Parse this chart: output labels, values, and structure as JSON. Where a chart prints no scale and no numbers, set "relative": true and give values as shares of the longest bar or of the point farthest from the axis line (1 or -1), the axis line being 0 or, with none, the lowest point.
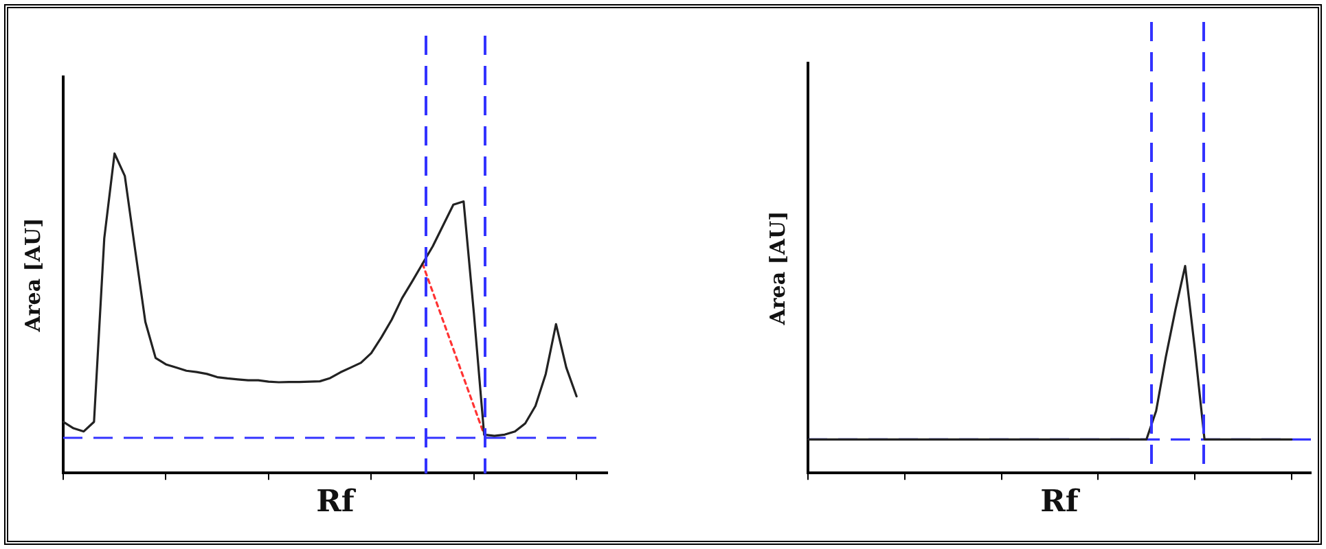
{
  "chart_data": [
    {
      "type": "line",
      "xlabel": "Rf",
      "ylabel": "Area [AU]",
      "relative": true,
      "tick_labels": false,
      "legend": false,
      "grid": false,
      "marker": "none",
      "categories": [
        null,
        null,
        null,
        null,
        null,
        null,
        null,
        null,
        null,
        null,
        null,
        null,
        null,
        null,
        null,
        null,
        null,
        null,
        null,
        null,
        null,
        null,
        null,
        null,
        null,
        null,
        null,
        null,
        null,
        null,
        null,
        null,
        null,
        null,
        null,
        null,
        null,
        null,
        null,
        null,
        null,
        null,
        null,
        null,
        null,
        null,
        null,
        null,
        null,
        null,
        null,
        null,
        null,
        null
      ],
      "series": [
        {
          "color": "#222222",
          "line_style": "solid",
          "values": [
            0.16,
            0.14,
            0.13,
            0.16,
            0.735,
            1,
            0.93,
            0.7,
            0.473,
            0.36,
            0.34,
            0.33,
            0.32,
            0.316,
            0.31,
            0.3,
            0.296,
            0.293,
            0.29,
            0.29,
            0.286,
            0.284,
            0.285,
            0.285,
            0.286,
            0.287,
            0.297,
            0.315,
            0.33,
            0.345,
            0.375,
            0.425,
            0.48,
            0.547,
            0.6,
            0.655,
            0.71,
            0.775,
            0.84,
            0.85,
            0.5,
            0.12,
            0.116,
            0.12,
            0.13,
            0.155,
            0.21,
            0.31,
            0.466,
            0.33,
            0.24,
            null,
            null,
            null
          ]
        },
        {
          "type": "line",
          "color": "#ff3333",
          "line_style": "dotted",
          "values": [
            null,
            null,
            null,
            null,
            null,
            null,
            null,
            null,
            null,
            null,
            null,
            null,
            null,
            null,
            null,
            null,
            null,
            null,
            null,
            null,
            null,
            null,
            null,
            null,
            null,
            null,
            null,
            null,
            null,
            null,
            null,
            null,
            null,
            null,
            null,
            0.655,
            null,
            null,
            null,
            null,
            null,
            0.12,
            null,
            null,
            null,
            null,
            null,
            null,
            null,
            null,
            null,
            null,
            null,
            null
          ]
        }
      ],
      "ref_lines": [
        {
          "axis": "y",
          "value": 0.11,
          "color": "#3333ff",
          "line_style": "dashed"
        }
      ]
    },
    {
      "type": "line",
      "xlabel": "Rf",
      "ylabel": "Area [AU]",
      "relative": true,
      "tick_labels": false,
      "legend": false,
      "grid": false,
      "marker": "none",
      "categories": [
        null,
        null,
        null,
        null,
        null,
        null,
        null,
        null,
        null,
        null,
        null,
        null,
        null,
        null,
        null,
        null,
        null,
        null,
        null,
        null,
        null,
        null,
        null,
        null,
        null,
        null,
        null,
        null,
        null,
        null,
        null,
        null,
        null,
        null,
        null,
        null,
        null,
        null,
        null,
        null,
        null,
        null,
        null,
        null,
        null,
        null,
        null,
        null,
        null,
        null,
        null,
        null,
        null
      ],
      "series": [
        {
          "color": "#222222",
          "line_style": "solid",
          "values": [
            0.162,
            0.162,
            0.162,
            0.162,
            0.162,
            0.162,
            0.162,
            0.162,
            0.162,
            0.162,
            0.162,
            0.162,
            0.162,
            0.162,
            0.162,
            0.162,
            0.162,
            0.162,
            0.162,
            0.162,
            0.162,
            0.162,
            0.162,
            0.162,
            0.162,
            0.162,
            0.162,
            0.162,
            0.162,
            0.162,
            0.162,
            0.162,
            0.162,
            0.162,
            0.162,
            0.162,
            0.3,
            0.56,
            0.79,
            1,
            0.6,
            0.162,
            0.162,
            0.162,
            0.162,
            0.162,
            0.162,
            0.162,
            0.162,
            0.162,
            0.162,
            null,
            null
          ]
        }
      ],
      "ref_lines": [
        {
          "axis": "y",
          "value": 0.162,
          "color": "#3333ff",
          "line_style": "dashed"
        }
      ]
    }
  ]
}
